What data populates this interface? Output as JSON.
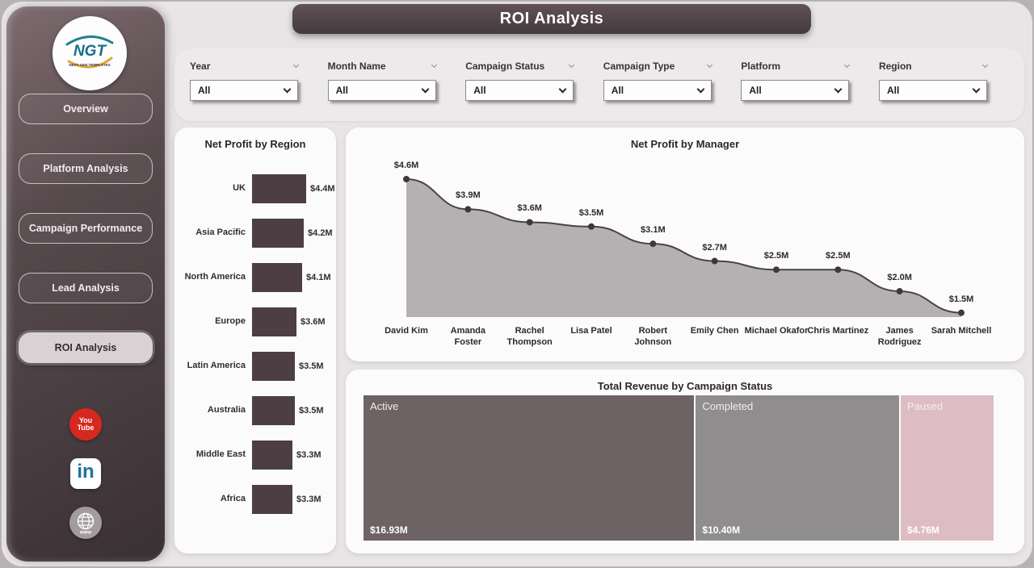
{
  "page": {
    "title": "ROI Analysis"
  },
  "sidebar": {
    "logo": {
      "text": "NGT",
      "subtext": "NEXT GEN TEMPLATES"
    },
    "items": [
      {
        "label": "Overview",
        "active": false
      },
      {
        "label": "Platform Analysis",
        "active": false
      },
      {
        "label": "Campaign Performance",
        "active": false
      },
      {
        "label": "Lead Analysis",
        "active": false
      },
      {
        "label": "ROI Analysis",
        "active": true
      }
    ],
    "social": {
      "youtube_line1": "You",
      "youtube_line2": "Tube",
      "linkedin_text": "in",
      "web_text": "www"
    }
  },
  "filters": [
    {
      "label": "Year",
      "value": "All"
    },
    {
      "label": "Month Name",
      "value": "All"
    },
    {
      "label": "Campaign Status",
      "value": "All"
    },
    {
      "label": "Campaign Type",
      "value": "All"
    },
    {
      "label": "Platform",
      "value": "All"
    },
    {
      "label": "Region",
      "value": "All"
    }
  ],
  "chart_data": [
    {
      "type": "bar",
      "orientation": "horizontal",
      "title": "Net Profit by Region",
      "categories": [
        "UK",
        "Asia Pacific",
        "North America",
        "Europe",
        "Latin America",
        "Australia",
        "Middle East",
        "Africa"
      ],
      "values": [
        4.4,
        4.2,
        4.1,
        3.6,
        3.5,
        3.5,
        3.3,
        3.3
      ],
      "labels": [
        "$4.4M",
        "$4.2M",
        "$4.1M",
        "$3.6M",
        "$3.5M",
        "$3.5M",
        "$3.3M",
        "$3.3M"
      ],
      "bar_color": "#4c3e42",
      "xlim": [
        0,
        4.4
      ]
    },
    {
      "type": "area",
      "title": "Net Profit by Manager",
      "categories": [
        "David Kim",
        "Amanda Foster",
        "Rachel Thompson",
        "Lisa Patel",
        "Robert Johnson",
        "Emily Chen",
        "Michael Okafor",
        "Chris Martinez",
        "James Rodriguez",
        "Sarah Mitchell"
      ],
      "values": [
        4.6,
        3.9,
        3.6,
        3.5,
        3.1,
        2.7,
        2.5,
        2.5,
        2.0,
        1.5
      ],
      "labels": [
        "$4.6M",
        "$3.9M",
        "$3.6M",
        "$3.5M",
        "$3.1M",
        "$2.7M",
        "$2.5M",
        "$2.5M",
        "$2.0M",
        "$1.5M"
      ],
      "ylim": [
        1.4,
        4.6
      ],
      "fill_color": "#b5b1b2",
      "line_color": "#4a4243",
      "point_color": "#3f3739"
    },
    {
      "type": "treemap",
      "title": "Total Revenue by Campaign Status",
      "segments": [
        {
          "label": "Active",
          "value": 16.93,
          "display": "$16.93M",
          "color": "#6d6264"
        },
        {
          "label": "Completed",
          "value": 10.4,
          "display": "$10.40M",
          "color": "#908d8e"
        },
        {
          "label": "Paused",
          "value": 4.76,
          "display": "$4.76M",
          "color": "#ddbcc4"
        }
      ]
    }
  ]
}
